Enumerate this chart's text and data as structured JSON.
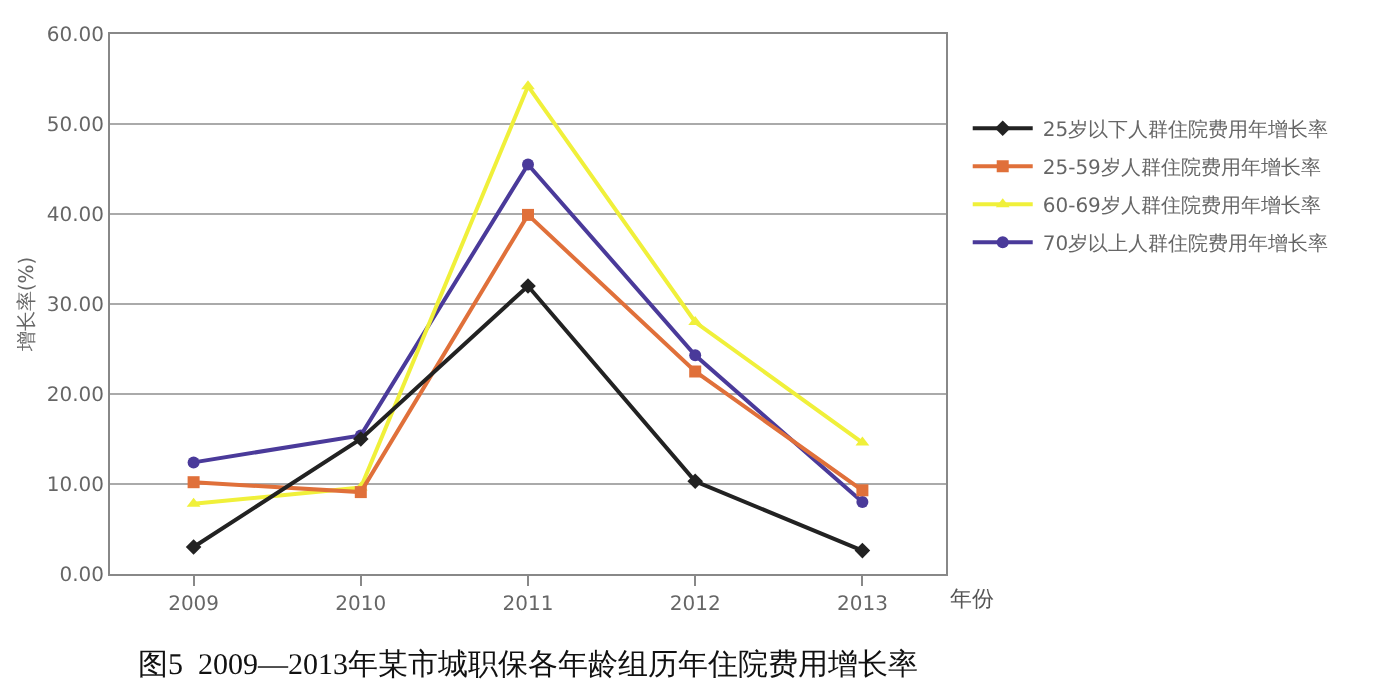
{
  "chart_data": {
    "type": "line",
    "title": "图5  2009—2013年某市城职保各年龄组历年住院费用增长率",
    "xlabel": "年份",
    "ylabel": "增长率(%)",
    "categories": [
      "2009",
      "2010",
      "2011",
      "2012",
      "2013"
    ],
    "series": [
      {
        "name": "25岁以下人群住院费用年增长率",
        "color": "#222222",
        "marker": "diamond",
        "values": [
          3.0,
          15.0,
          32.0,
          10.3,
          2.6
        ]
      },
      {
        "name": "25-59岁人群住院费用年增长率",
        "color": "#e0703a",
        "marker": "square",
        "values": [
          10.2,
          9.1,
          39.9,
          22.5,
          9.3
        ]
      },
      {
        "name": "60-69岁人群住院费用年增长率",
        "color": "#f0f03a",
        "marker": "triangle",
        "values": [
          7.8,
          9.6,
          54.2,
          28.0,
          14.6
        ]
      },
      {
        "name": "70岁以上人群住院费用年增长率",
        "color": "#4a3a9a",
        "marker": "circle",
        "values": [
          12.4,
          15.4,
          45.5,
          24.3,
          8.0
        ]
      }
    ],
    "ylim": [
      0,
      60
    ],
    "yticks": [
      {
        "value": 0,
        "label": "0.00"
      },
      {
        "value": 10,
        "label": "10.00"
      },
      {
        "value": 20,
        "label": "20.00"
      },
      {
        "value": 30,
        "label": "30.00"
      },
      {
        "value": 40,
        "label": "40.00"
      },
      {
        "value": 50,
        "label": "50.00"
      },
      {
        "value": 60,
        "label": "60.00"
      }
    ],
    "grid": "y",
    "legend": "right",
    "line_style": "solid"
  }
}
